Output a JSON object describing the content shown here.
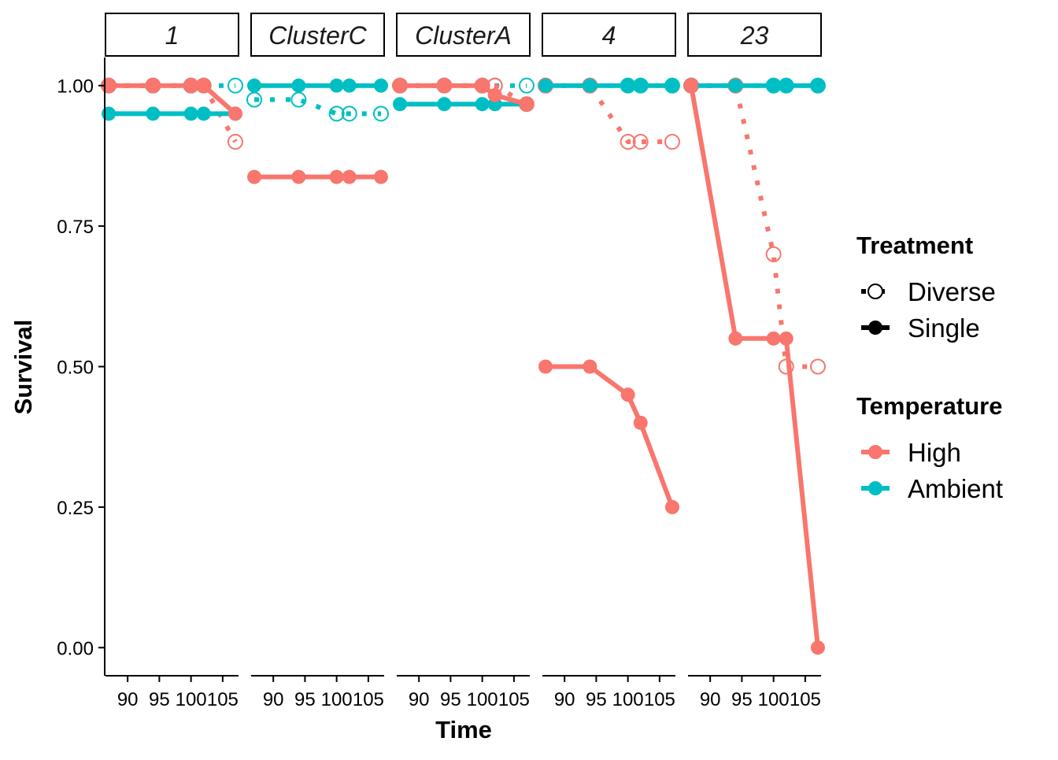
{
  "chart_data": {
    "type": "line",
    "xlabel": "Time",
    "ylabel": "Survival",
    "xlim": [
      86.5,
      107.5
    ],
    "ylim": [
      -0.05,
      1.05
    ],
    "x_ticks": [
      90,
      95,
      100,
      105
    ],
    "x_tick_labels": [
      "90",
      "95",
      "100",
      "105"
    ],
    "y_ticks": [
      0,
      0.25,
      0.5,
      0.75,
      1
    ],
    "y_tick_labels": [
      "0.00",
      "0.25",
      "0.50",
      "0.75",
      "1.00"
    ],
    "grid": false,
    "legend_position": "right",
    "colors": {
      "High": "#F8766D",
      "Ambient": "#00BFC4"
    },
    "legend": {
      "treatment_title": "Treatment",
      "treatment_items": [
        {
          "label": "Diverse",
          "style": "dotted-open"
        },
        {
          "label": "Single",
          "style": "solid-filled"
        }
      ],
      "temperature_title": "Temperature",
      "temperature_items": [
        {
          "label": "High",
          "color": "#F8766D"
        },
        {
          "label": "Ambient",
          "color": "#00BFC4"
        }
      ]
    },
    "panels": [
      {
        "title": "1",
        "series": [
          {
            "temperature": "Ambient",
            "treatment": "Diverse",
            "x": [
              87,
              94,
              100,
              102,
              107
            ],
            "y": [
              1,
              1,
              1,
              1,
              1
            ]
          },
          {
            "temperature": "High",
            "treatment": "Diverse",
            "x": [
              87,
              94,
              100,
              102,
              107
            ],
            "y": [
              1,
              1,
              1,
              1,
              0.9
            ]
          },
          {
            "temperature": "Ambient",
            "treatment": "Single",
            "x": [
              87,
              94,
              100,
              102,
              107
            ],
            "y": [
              0.95,
              0.95,
              0.95,
              0.95,
              0.95
            ]
          },
          {
            "temperature": "High",
            "treatment": "Single",
            "x": [
              87,
              94,
              100,
              102,
              107
            ],
            "y": [
              1,
              1,
              1,
              1,
              0.95
            ]
          }
        ]
      },
      {
        "title": "ClusterC",
        "series": [
          {
            "temperature": "Ambient",
            "treatment": "Diverse",
            "x": [
              87,
              94,
              100,
              102,
              107
            ],
            "y": [
              0.975,
              0.975,
              0.95,
              0.95,
              0.95
            ]
          },
          {
            "temperature": "Ambient",
            "treatment": "Single",
            "x": [
              87,
              94,
              100,
              102,
              107
            ],
            "y": [
              1,
              1,
              1,
              1,
              1
            ]
          },
          {
            "temperature": "High",
            "treatment": "Single",
            "x": [
              87,
              94,
              100,
              102,
              107
            ],
            "y": [
              0.8375,
              0.8375,
              0.8375,
              0.8375,
              0.8375
            ]
          }
        ]
      },
      {
        "title": "ClusterA",
        "series": [
          {
            "temperature": "Ambient",
            "treatment": "Diverse",
            "x": [
              87,
              94,
              100,
              102,
              107
            ],
            "y": [
              1,
              1,
              1,
              1,
              1
            ]
          },
          {
            "temperature": "High",
            "treatment": "Diverse",
            "x": [
              87,
              94,
              100,
              102,
              107
            ],
            "y": [
              1,
              1,
              1,
              1,
              0.967
            ]
          },
          {
            "temperature": "Ambient",
            "treatment": "Single",
            "x": [
              87,
              94,
              100,
              102,
              107
            ],
            "y": [
              0.967,
              0.967,
              0.967,
              0.967,
              0.967
            ]
          },
          {
            "temperature": "High",
            "treatment": "Single",
            "x": [
              87,
              94,
              100,
              102,
              107
            ],
            "y": [
              1,
              1,
              1,
              0.983,
              0.967
            ]
          }
        ]
      },
      {
        "title": "4",
        "series": [
          {
            "temperature": "Ambient",
            "treatment": "Diverse",
            "x": [
              87,
              94,
              100,
              102,
              107
            ],
            "y": [
              1,
              1,
              1,
              1,
              1
            ]
          },
          {
            "temperature": "High",
            "treatment": "Diverse",
            "x": [
              87,
              94,
              100,
              102,
              107
            ],
            "y": [
              1,
              1,
              0.9,
              0.9,
              0.9
            ]
          },
          {
            "temperature": "Ambient",
            "treatment": "Single",
            "x": [
              87,
              94,
              100,
              102,
              107
            ],
            "y": [
              1,
              1,
              1,
              1,
              1
            ]
          },
          {
            "temperature": "High",
            "treatment": "Single",
            "x": [
              87,
              94,
              100,
              102,
              107
            ],
            "y": [
              0.5,
              0.5,
              0.45,
              0.4,
              0.25
            ]
          }
        ]
      },
      {
        "title": "23",
        "series": [
          {
            "temperature": "Ambient",
            "treatment": "Diverse",
            "x": [
              87,
              94,
              100,
              102,
              107
            ],
            "y": [
              1,
              1,
              1,
              1,
              1
            ]
          },
          {
            "temperature": "High",
            "treatment": "Diverse",
            "x": [
              87,
              94,
              100,
              102,
              107
            ],
            "y": [
              1,
              1,
              0.7,
              0.5,
              0.5
            ]
          },
          {
            "temperature": "Ambient",
            "treatment": "Single",
            "x": [
              87,
              94,
              100,
              102,
              107
            ],
            "y": [
              1,
              1,
              1,
              1,
              1
            ]
          },
          {
            "temperature": "High",
            "treatment": "Single",
            "x": [
              87,
              94,
              100,
              102,
              107
            ],
            "y": [
              1,
              0.55,
              0.55,
              0.55,
              0
            ]
          }
        ]
      }
    ]
  }
}
